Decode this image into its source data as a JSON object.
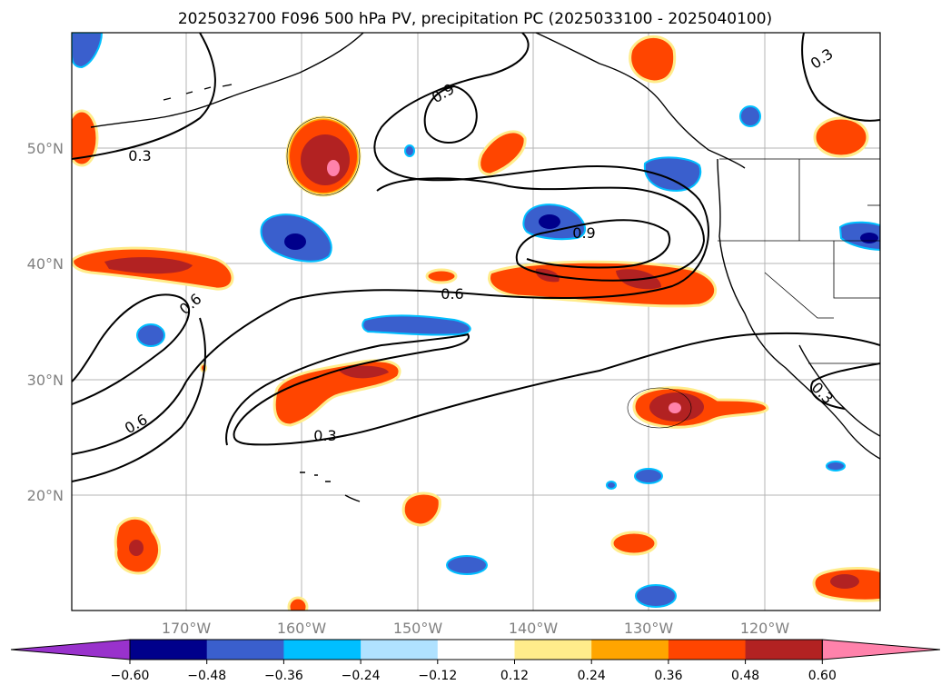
{
  "title": "2025032700 F096 500 hPa PV, precipitation PC (2025033100 - 2025040100)",
  "chart_data": {
    "type": "map",
    "lon_range": [
      -180,
      -110
    ],
    "lat_range": [
      10,
      60
    ],
    "lat_ticks": [
      {
        "value": 20,
        "label": "20°N"
      },
      {
        "value": 30,
        "label": "30°N"
      },
      {
        "value": 40,
        "label": "40°N"
      },
      {
        "value": 50,
        "label": "50°N"
      }
    ],
    "lon_ticks": [
      {
        "value": -170,
        "label": "170°W"
      },
      {
        "value": -160,
        "label": "160°W"
      },
      {
        "value": -150,
        "label": "150°W"
      },
      {
        "value": -140,
        "label": "140°W"
      },
      {
        "value": -130,
        "label": "130°W"
      },
      {
        "value": -120,
        "label": "120°W"
      }
    ],
    "grid": true,
    "colorbar": {
      "orientation": "horizontal",
      "extend": "both",
      "levels": [
        -0.6,
        -0.48,
        -0.36,
        -0.24,
        -0.12,
        0.12,
        0.24,
        0.36,
        0.48,
        0.6
      ],
      "tick_labels": [
        "−0.60",
        "−0.48",
        "−0.36",
        "−0.24",
        "−0.12",
        "0.12",
        "0.24",
        "0.36",
        "0.48",
        "0.60"
      ],
      "colors": [
        "#9932cc",
        "#00008b",
        "#3a5fcd",
        "#00bfff",
        "#b0e2ff",
        "#ffffff",
        "#ffec8b",
        "#ffa500",
        "#ff4500",
        "#b22222",
        "#ff82ab"
      ]
    },
    "contour_labels": [
      {
        "text": "0.9",
        "lon": -149,
        "lat": 55.3
      },
      {
        "text": "0.9",
        "lon": -137.6,
        "lat": 42.6
      },
      {
        "text": "0.6",
        "lon": -148.6,
        "lat": 37.6
      },
      {
        "text": "0.6",
        "lon": -169.8,
        "lat": 35.6
      },
      {
        "text": "0.6",
        "lon": -175.8,
        "lat": 26.0
      },
      {
        "text": "0.3",
        "lon": -174.0,
        "lat": 49.5
      },
      {
        "text": "0.3",
        "lon": -158.6,
        "lat": 25.5
      },
      {
        "text": "0.3",
        "lon": -112.9,
        "lat": 57.8
      },
      {
        "text": "0.3",
        "lon": -114.7,
        "lat": 28.9
      }
    ]
  }
}
